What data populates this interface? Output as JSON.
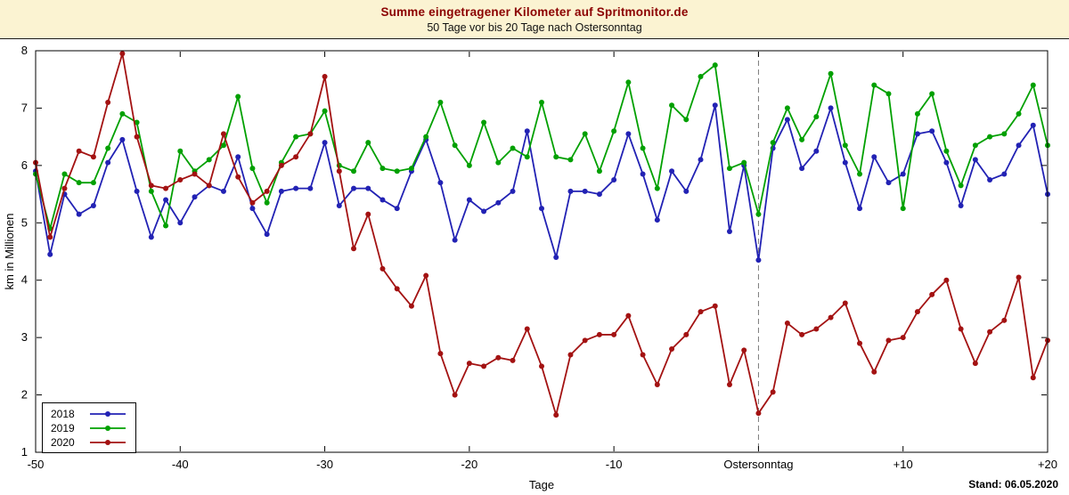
{
  "title_bar": {
    "title": "Summe eingetragener Kilometer auf Spritmonitor.de",
    "subtitle": "50 Tage vor bis 20 Tage nach Ostersonntag"
  },
  "footer": {
    "stand": "Stand: 06.05.2020"
  },
  "colors": {
    "title_text": "#8b0000",
    "titlebar_background": "#fbf3d2",
    "plot_background": "#ffffff",
    "vline": "#7a7a7a"
  },
  "chart_data": {
    "type": "line",
    "title": "Summe eingetragener Kilometer auf Spritmonitor.de",
    "subtitle": "50 Tage vor bis 20 Tage nach Ostersonntag",
    "xlabel": "Tage",
    "ylabel": "km in Millionen",
    "xlim": [
      -50,
      20
    ],
    "ylim": [
      1,
      8
    ],
    "x_start": -50,
    "x_step": 1,
    "grid": false,
    "legend_position": "bottom-left",
    "y_ticks": [
      1,
      2,
      3,
      4,
      5,
      6,
      7,
      8
    ],
    "x_ticks": [
      {
        "value": -50,
        "label": "-50"
      },
      {
        "value": -40,
        "label": "-40"
      },
      {
        "value": -30,
        "label": "-30"
      },
      {
        "value": -20,
        "label": "-20"
      },
      {
        "value": -10,
        "label": "-10"
      },
      {
        "value": 0,
        "label": "Ostersonntag"
      },
      {
        "value": 10,
        "label": "+10"
      },
      {
        "value": 20,
        "label": "+20"
      }
    ],
    "vline": {
      "x": 0,
      "style": "dashed",
      "color": "#7a7a7a"
    },
    "series": [
      {
        "name": "2018",
        "color": "#2222b4",
        "values": [
          5.9,
          4.45,
          5.5,
          5.15,
          5.3,
          6.05,
          6.45,
          5.55,
          4.75,
          5.4,
          5.0,
          5.45,
          5.65,
          5.55,
          6.15,
          5.25,
          4.8,
          5.55,
          5.6,
          5.6,
          6.4,
          5.3,
          5.6,
          5.6,
          5.4,
          5.25,
          5.9,
          6.45,
          5.7,
          4.7,
          5.4,
          5.2,
          5.35,
          5.55,
          6.6,
          5.25,
          4.4,
          5.55,
          5.55,
          5.5,
          5.75,
          6.55,
          5.85,
          5.05,
          5.9,
          5.55,
          6.1,
          7.05,
          4.85,
          6.0,
          4.35,
          6.3,
          6.8,
          5.95,
          6.25,
          7.0,
          6.05,
          5.25,
          6.15,
          5.7,
          5.85,
          6.55,
          6.6,
          6.05,
          5.3,
          6.1,
          5.75,
          5.85,
          6.35,
          6.7,
          5.5
        ]
      },
      {
        "name": "2019",
        "color": "#00a000",
        "values": [
          5.85,
          4.9,
          5.85,
          5.7,
          5.7,
          6.3,
          6.9,
          6.75,
          5.55,
          4.95,
          6.25,
          5.9,
          6.1,
          6.35,
          7.2,
          5.95,
          5.35,
          6.05,
          6.5,
          6.55,
          6.95,
          6.0,
          5.9,
          6.4,
          5.95,
          5.9,
          5.95,
          6.5,
          7.1,
          6.35,
          6.0,
          6.75,
          6.05,
          6.3,
          6.15,
          7.1,
          6.15,
          6.1,
          6.55,
          5.9,
          6.6,
          7.45,
          6.3,
          5.6,
          7.05,
          6.8,
          7.55,
          7.75,
          5.95,
          6.05,
          5.15,
          6.4,
          7.0,
          6.45,
          6.85,
          7.6,
          6.35,
          5.85,
          7.4,
          7.25,
          5.25,
          6.9,
          7.25,
          6.25,
          5.65,
          6.35,
          6.5,
          6.55,
          6.9,
          7.4,
          6.35
        ]
      },
      {
        "name": "2020",
        "color": "#a31212",
        "values": [
          6.05,
          4.75,
          5.6,
          6.25,
          6.15,
          7.1,
          7.95,
          6.5,
          5.65,
          5.6,
          5.75,
          5.85,
          5.65,
          6.55,
          5.8,
          5.35,
          5.55,
          6.0,
          6.15,
          6.55,
          7.55,
          5.9,
          4.55,
          5.15,
          4.2,
          3.85,
          3.55,
          4.08,
          2.72,
          2.0,
          2.55,
          2.5,
          2.65,
          2.6,
          3.15,
          2.5,
          1.65,
          2.7,
          2.95,
          3.05,
          3.05,
          3.38,
          2.7,
          2.18,
          2.8,
          3.05,
          3.45,
          3.55,
          2.18,
          2.78,
          1.68,
          2.05,
          3.25,
          3.05,
          3.15,
          3.35,
          3.6,
          2.9,
          2.4,
          2.95,
          3.0,
          3.45,
          3.75,
          4.0,
          3.15,
          2.55,
          3.1,
          3.3,
          4.05,
          2.3,
          2.95
        ]
      }
    ]
  }
}
